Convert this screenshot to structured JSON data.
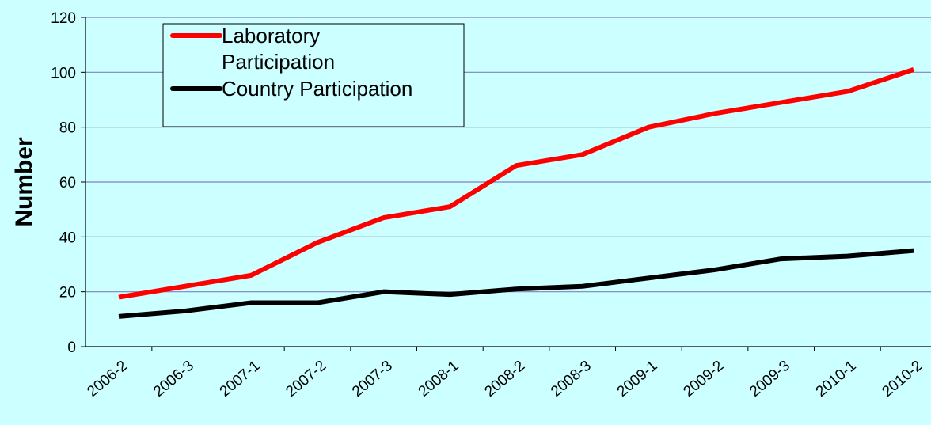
{
  "chart_data": {
    "type": "line",
    "ylabel": "Number",
    "categories": [
      "2006-2",
      "2006-3",
      "2007-1",
      "2007-2",
      "2007-3",
      "2008-1",
      "2008-2",
      "2008-3",
      "2009-1",
      "2009-2",
      "2009-3",
      "2010-1",
      "2010-2"
    ],
    "series": [
      {
        "name": "Laboratory Participation",
        "color": "#ff0000",
        "values": [
          18,
          22,
          26,
          38,
          47,
          51,
          66,
          70,
          80,
          85,
          89,
          93,
          101
        ]
      },
      {
        "name": "Country Participation",
        "color": "#000000",
        "values": [
          11,
          13,
          16,
          16,
          20,
          19,
          21,
          22,
          25,
          28,
          32,
          33,
          35
        ]
      }
    ],
    "ylim": [
      0,
      120
    ],
    "yticks": [
      0,
      20,
      40,
      60,
      80,
      100,
      120
    ],
    "grid": true,
    "legend": "upper left"
  }
}
